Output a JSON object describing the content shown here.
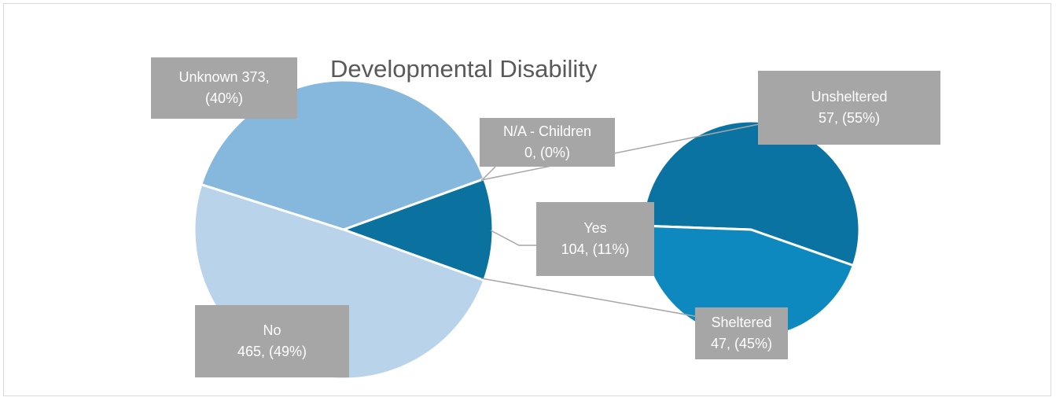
{
  "chart_data": {
    "type": "pie",
    "subtype": "bar-of-pie",
    "title": "Developmental Disability",
    "main_pie": {
      "slices": [
        {
          "key": "yes",
          "label": "Yes",
          "value": 104,
          "percent": "11%",
          "color": "#0b72a0"
        },
        {
          "key": "no",
          "label": "No",
          "value": 465,
          "percent": "49%",
          "color": "#b8d3ea"
        },
        {
          "key": "unknown",
          "label": "Unknown",
          "value": 373,
          "percent": "40%",
          "color": "#86b8de"
        },
        {
          "key": "na_children",
          "label": "N/A - Children",
          "value": 0,
          "percent": "0%",
          "color": "#0b72a0"
        }
      ]
    },
    "secondary_pie": {
      "breakdown_of": "Yes",
      "slices": [
        {
          "key": "unsheltered",
          "label": "Unsheltered",
          "value": 57,
          "percent": "55%",
          "color": "#0a73a1"
        },
        {
          "key": "sheltered",
          "label": "Sheltered",
          "value": 47,
          "percent": "45%",
          "color": "#0e89bf"
        }
      ]
    },
    "labels": {
      "unknown": {
        "line1": "Unknown 373,",
        "line2": "(40%)"
      },
      "na_children": {
        "line1": "N/A - Children",
        "line2": "0, (0%)"
      },
      "yes": {
        "line1": "Yes",
        "line2": "104, (11%)"
      },
      "no": {
        "line1": "No",
        "line2": "465, (49%)"
      },
      "unsheltered": {
        "line1": "Unsheltered",
        "line2": "57, (55%)"
      },
      "sheltered": {
        "line1": "Sheltered",
        "line2": "47, (45%)"
      }
    },
    "label_box_color": "#a6a6a6",
    "connector_color": "#a6a6a6",
    "legend": "none"
  }
}
